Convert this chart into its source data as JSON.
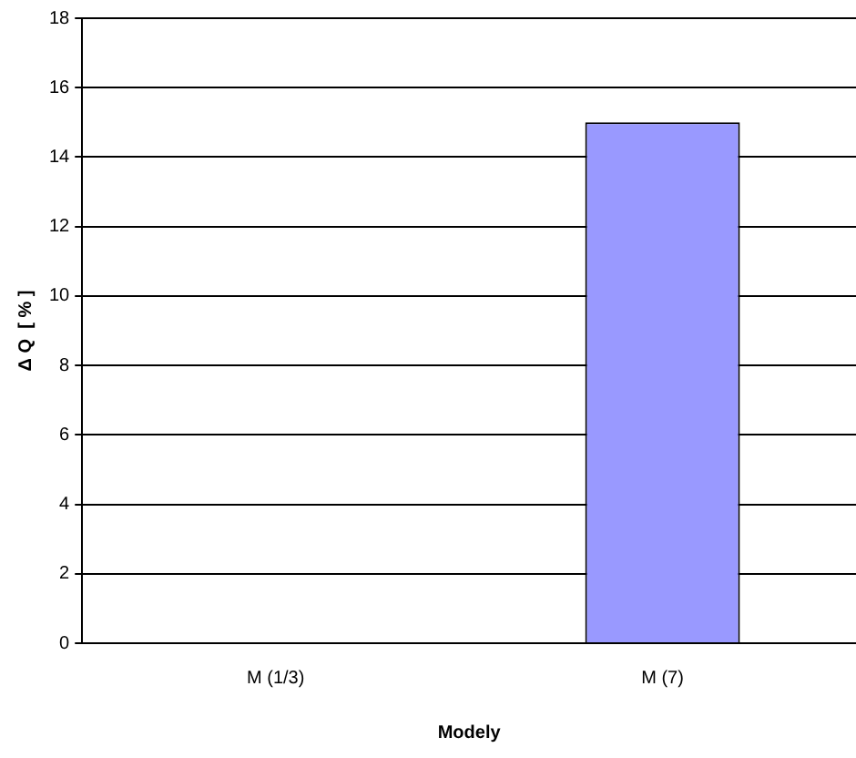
{
  "chart_data": {
    "type": "bar",
    "xlabel": "Modely",
    "ylabel": "Δ Q  [ % ]",
    "categories": [
      "M (1/3)",
      "M (7)"
    ],
    "values": [
      0,
      15
    ],
    "color": "#9999ff",
    "ylim": [
      0,
      18
    ],
    "yticks": [
      0,
      2,
      4,
      6,
      8,
      10,
      12,
      14,
      16,
      18
    ],
    "grid": "y",
    "legend": false
  }
}
